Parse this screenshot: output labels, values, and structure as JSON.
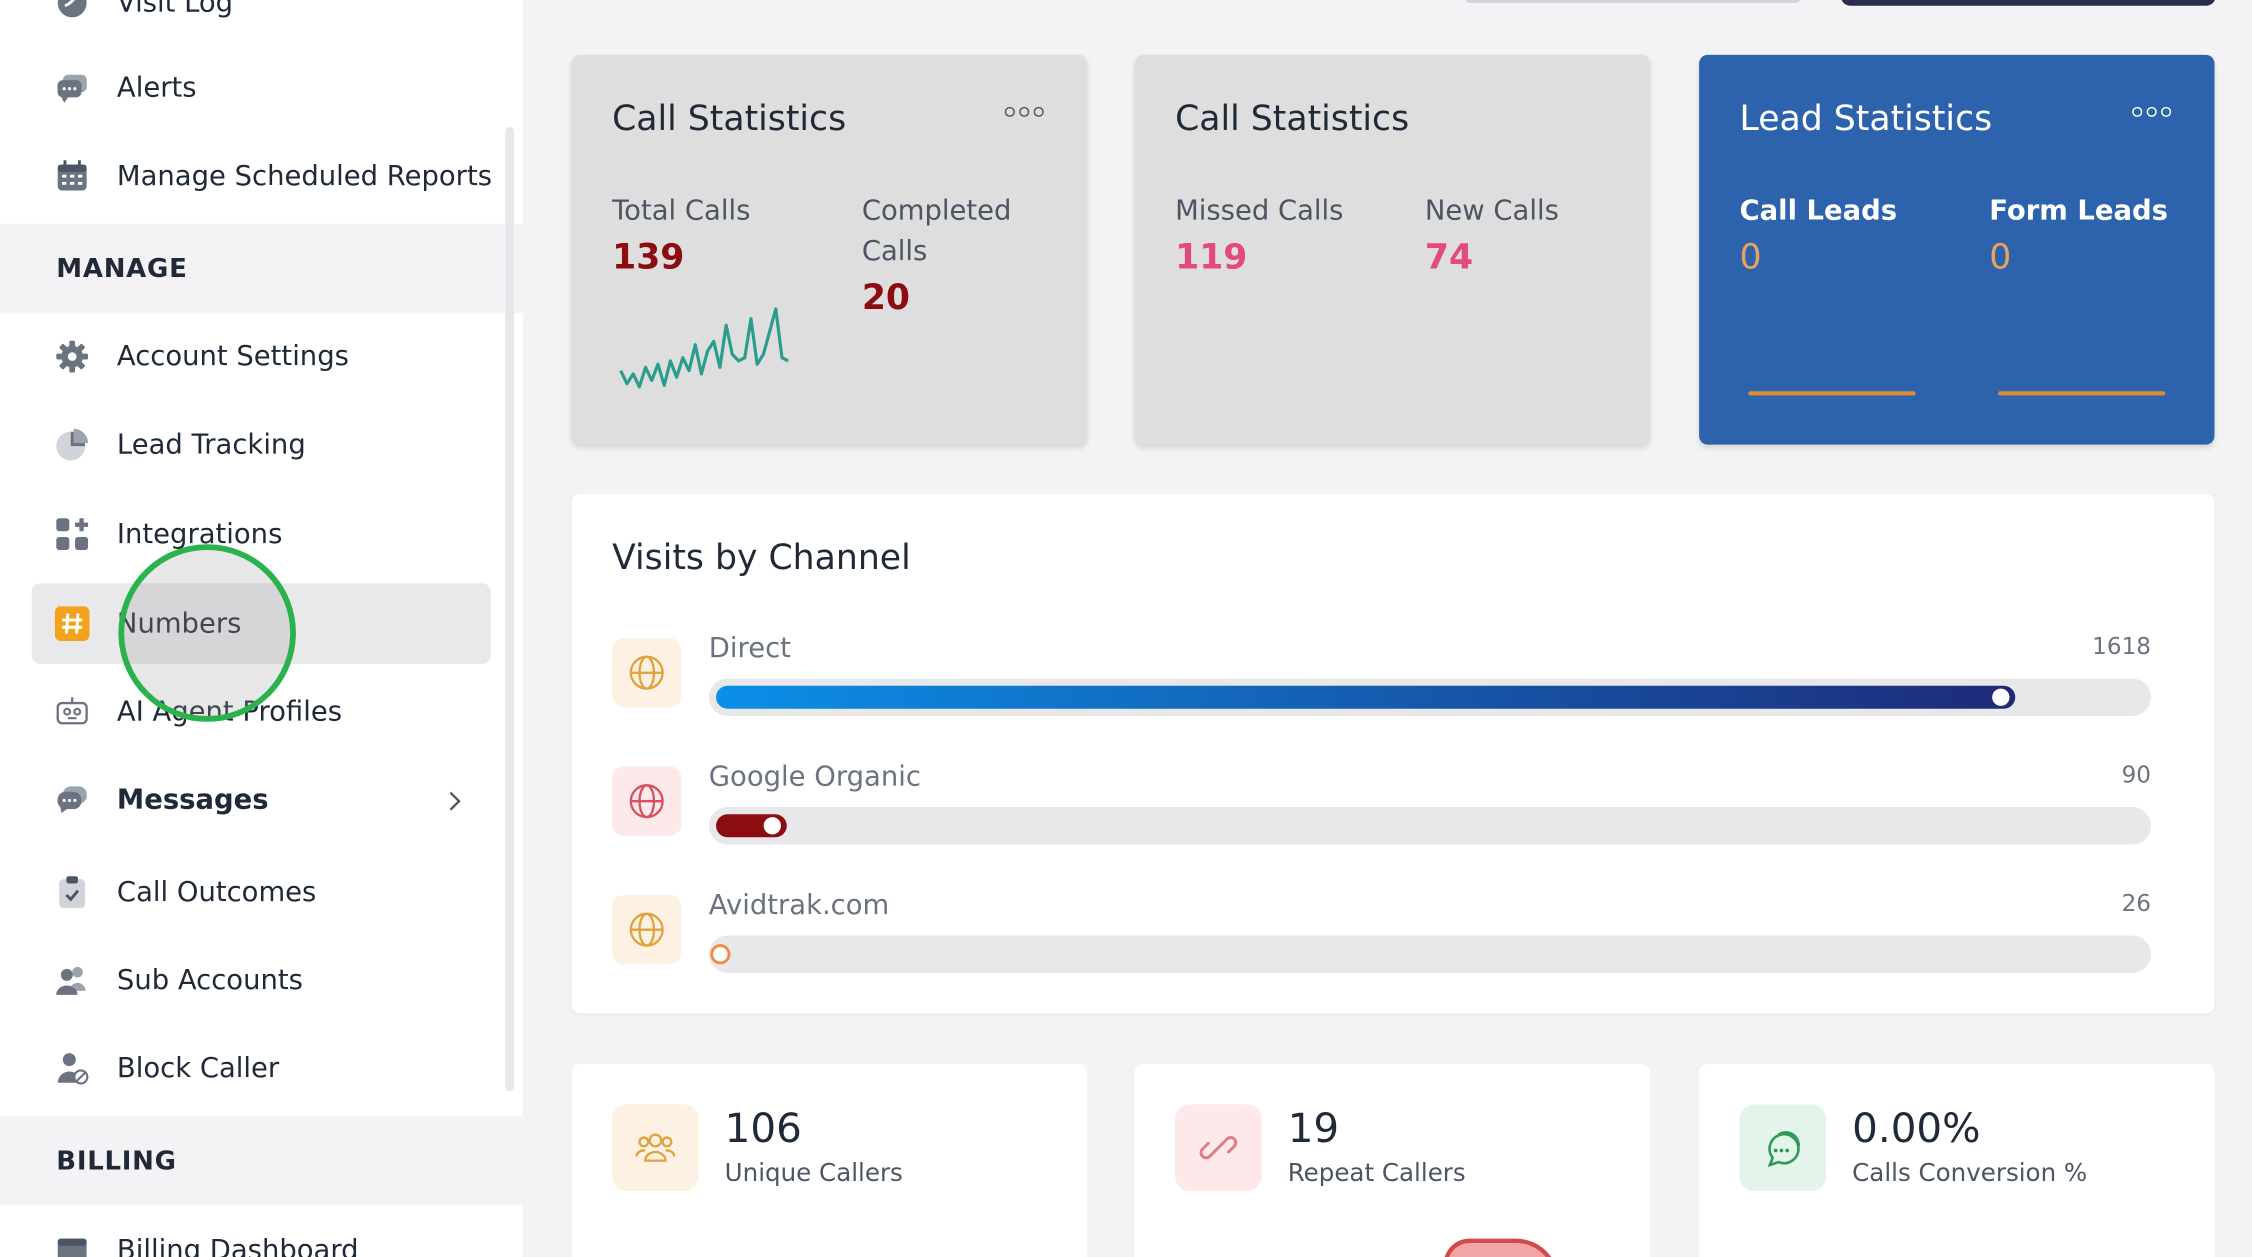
{
  "sidebar": {
    "top_partial": {
      "label": "Visit Log"
    },
    "items_top": [
      {
        "label": "Alerts",
        "icon": "chat-bubble-icon"
      },
      {
        "label": "Manage Scheduled Reports",
        "icon": "calendar-icon"
      }
    ],
    "sections": {
      "manage": "MANAGE",
      "billing": "BILLING"
    },
    "manage_items": [
      {
        "label": "Account Settings",
        "icon": "gear-icon"
      },
      {
        "label": "Lead Tracking",
        "icon": "pie-chart-icon"
      },
      {
        "label": "Integrations",
        "icon": "grid-plus-icon"
      },
      {
        "label": "Numbers",
        "icon": "hash-icon",
        "active": true
      },
      {
        "label": "AI Agent Profiles",
        "icon": "robot-icon"
      },
      {
        "label": "Messages",
        "icon": "chat-bubbles-icon",
        "bold": true,
        "has_submenu": true
      },
      {
        "label": "Call Outcomes",
        "icon": "clipboard-check-icon"
      },
      {
        "label": "Sub Accounts",
        "icon": "users-icon"
      },
      {
        "label": "Block Caller",
        "icon": "user-block-icon"
      }
    ],
    "billing_items": [
      {
        "label": "Billing Dashboard",
        "icon": "billing-icon"
      }
    ]
  },
  "cards": [
    {
      "title": "Call Statistics",
      "stats": [
        {
          "label": "Total Calls",
          "value": "139",
          "color": "#8b0d12"
        },
        {
          "label": "Completed Calls",
          "label_line1": "Completed",
          "label_line2": "Calls",
          "value": "20",
          "color": "#8b0d12"
        }
      ],
      "sparkline": [
        12,
        4,
        10,
        2,
        14,
        6,
        16,
        3,
        18,
        8,
        20,
        12,
        28,
        10,
        24,
        30,
        14,
        40,
        22,
        18,
        20,
        44,
        16,
        22,
        36,
        50,
        20,
        18
      ]
    },
    {
      "title": "Call Statistics",
      "stats": [
        {
          "label": "Missed Calls",
          "value": "119",
          "color": "#e3497a"
        },
        {
          "label": "New Calls",
          "value": "74",
          "color": "#e3497a"
        }
      ]
    },
    {
      "title": "Lead Statistics",
      "stats": [
        {
          "label": "Call Leads",
          "value": "0",
          "color": "#e9a25a"
        },
        {
          "label": "Form Leads",
          "value": "0",
          "color": "#e9a25a"
        }
      ]
    }
  ],
  "visits": {
    "title": "Visits by Channel",
    "channels": [
      {
        "name": "Direct",
        "count": "1618",
        "share": 0.91,
        "fill_from": "#0b8fe8",
        "fill_to": "#1e2a78",
        "icon_bg": "#fdf1e3",
        "icon_color": "#e0a23a"
      },
      {
        "name": "Google Organic",
        "count": "90",
        "share": 0.05,
        "fill_from": "#8b0d12",
        "fill_to": "#8b0d12",
        "icon_bg": "#fde8ea",
        "icon_color": "#d8505f"
      },
      {
        "name": "Avidtrak.com",
        "count": "26",
        "share": 0.0,
        "fill_from": "#ffffff",
        "fill_to": "#ffffff",
        "icon_bg": "#fdf1e3",
        "icon_color": "#e0a23a"
      }
    ]
  },
  "summary": [
    {
      "value": "106",
      "label": "Unique Callers",
      "icon": "users-outline-icon",
      "icon_bg": "#fdf1e3",
      "icon_color": "#e0a23a"
    },
    {
      "value": "19",
      "label": "Repeat Callers",
      "icon": "link-icon",
      "icon_bg": "#fde8ea",
      "icon_color": "#e07b86"
    },
    {
      "value": "0.00%",
      "label": "Calls Conversion %",
      "icon": "chat-icon",
      "icon_bg": "#e3f5ea",
      "icon_color": "#2f9a57"
    }
  ]
}
